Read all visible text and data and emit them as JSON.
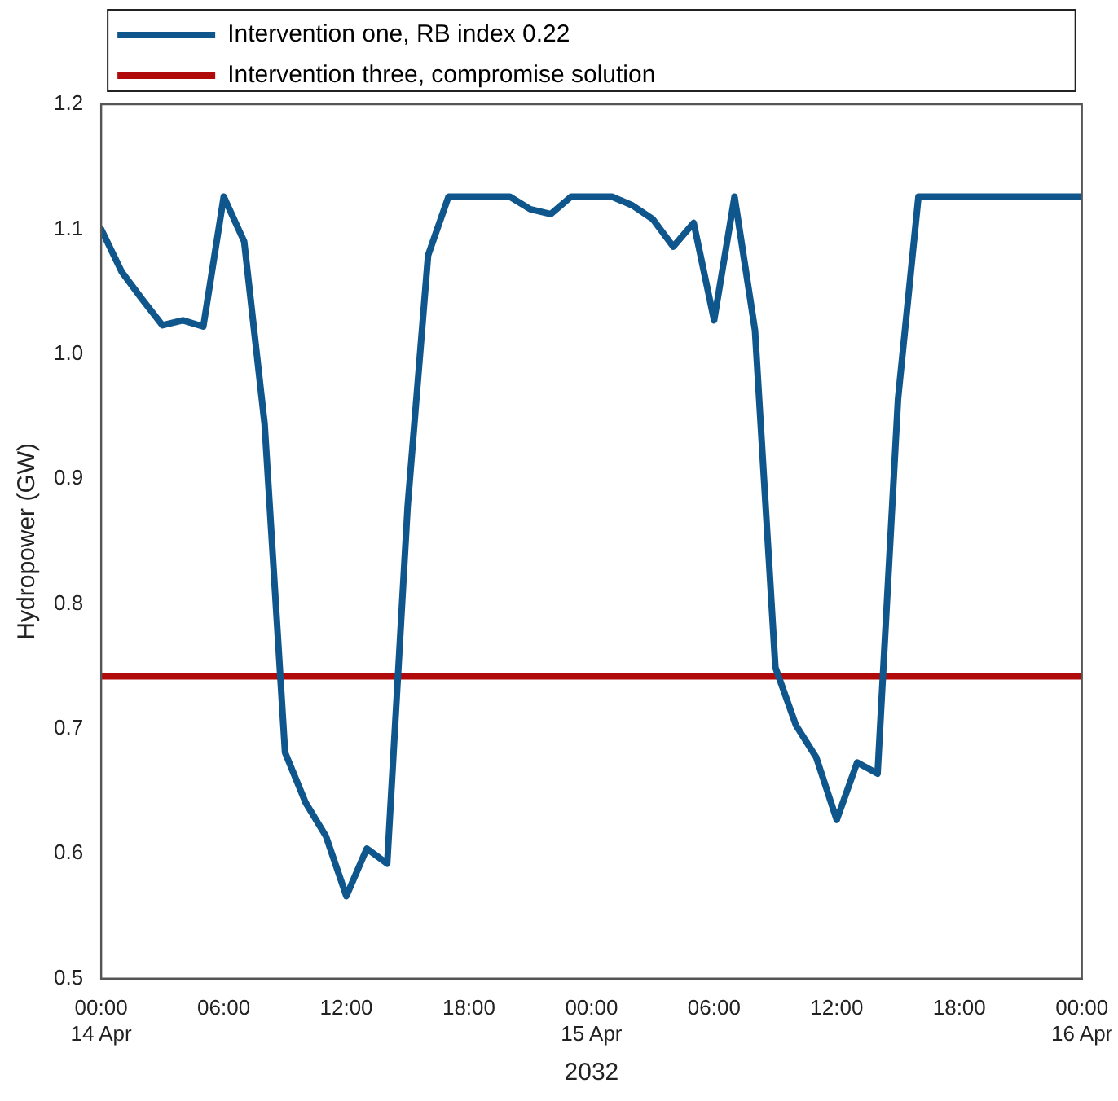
{
  "chart_data": {
    "type": "line",
    "ylabel": "Hydropower (GW)",
    "xlabel": "2032",
    "xlim": [
      "2032-04-14T00:00",
      "2032-04-16T00:00"
    ],
    "xticks": [
      {
        "value": "2032-04-14T00:00",
        "label": "00:00\n14 Apr"
      },
      {
        "value": "2032-04-14T06:00",
        "label": "06:00"
      },
      {
        "value": "2032-04-14T12:00",
        "label": "12:00"
      },
      {
        "value": "2032-04-14T18:00",
        "label": "18:00"
      },
      {
        "value": "2032-04-15T00:00",
        "label": "00:00\n15 Apr"
      },
      {
        "value": "2032-04-15T06:00",
        "label": "06:00"
      },
      {
        "value": "2032-04-15T12:00",
        "label": "12:00"
      },
      {
        "value": "2032-04-15T18:00",
        "label": "18:00"
      },
      {
        "value": "2032-04-16T00:00",
        "label": "00:00\n16 Apr"
      }
    ],
    "ylim": [
      0.5,
      1.2
    ],
    "yticks": [
      0.5,
      0.6,
      0.7,
      0.8,
      0.9,
      {
        "value": 1.0,
        "label": "1.0"
      },
      1.1,
      1.2
    ],
    "grid": false,
    "legend": "top left",
    "marker": "none",
    "line_style": "solid",
    "series": [
      {
        "name": "Intervention one, RB index 0.22",
        "color": "#0f568c",
        "x": [
          "2032-04-14T00:00",
          "2032-04-14T01:00",
          "2032-04-14T02:00",
          "2032-04-14T03:00",
          "2032-04-14T04:00",
          "2032-04-14T05:00",
          "2032-04-14T06:00",
          "2032-04-14T07:00",
          "2032-04-14T08:00",
          "2032-04-14T09:00",
          "2032-04-14T10:00",
          "2032-04-14T11:00",
          "2032-04-14T12:00",
          "2032-04-14T13:00",
          "2032-04-14T14:00",
          "2032-04-14T15:00",
          "2032-04-14T16:00",
          "2032-04-14T17:00",
          "2032-04-14T18:00",
          "2032-04-14T19:00",
          "2032-04-14T20:00",
          "2032-04-14T21:00",
          "2032-04-14T22:00",
          "2032-04-14T23:00",
          "2032-04-15T00:00",
          "2032-04-15T01:00",
          "2032-04-15T02:00",
          "2032-04-15T03:00",
          "2032-04-15T04:00",
          "2032-04-15T05:00",
          "2032-04-15T06:00",
          "2032-04-15T07:00",
          "2032-04-15T08:00",
          "2032-04-15T09:00",
          "2032-04-15T10:00",
          "2032-04-15T11:00",
          "2032-04-15T12:00",
          "2032-04-15T13:00",
          "2032-04-15T14:00",
          "2032-04-15T15:00",
          "2032-04-15T16:00",
          "2032-04-15T17:00",
          "2032-04-15T18:00",
          "2032-04-15T19:00",
          "2032-04-15T20:00",
          "2032-04-15T21:00",
          "2032-04-15T22:00",
          "2032-04-15T23:00",
          "2032-04-16T00:00"
        ],
        "values": [
          1.1,
          1.066,
          1.044,
          1.023,
          1.027,
          1.022,
          1.126,
          1.09,
          0.944,
          0.681,
          0.641,
          0.614,
          0.566,
          0.604,
          0.592,
          0.878,
          1.079,
          1.126,
          1.126,
          1.126,
          1.126,
          1.116,
          1.112,
          1.126,
          1.126,
          1.126,
          1.119,
          1.108,
          1.086,
          1.105,
          1.027,
          1.126,
          1.019,
          0.749,
          0.703,
          0.677,
          0.627,
          0.673,
          0.664,
          0.964,
          1.126,
          1.126,
          1.126,
          1.126,
          1.126,
          1.126,
          1.126,
          1.126,
          1.126
        ]
      },
      {
        "name": "Intervention three, compromise solution",
        "color": "#b00a0a",
        "x": [
          "2032-04-14T00:00",
          "2032-04-16T00:00"
        ],
        "values": [
          0.742,
          0.742
        ]
      }
    ]
  }
}
